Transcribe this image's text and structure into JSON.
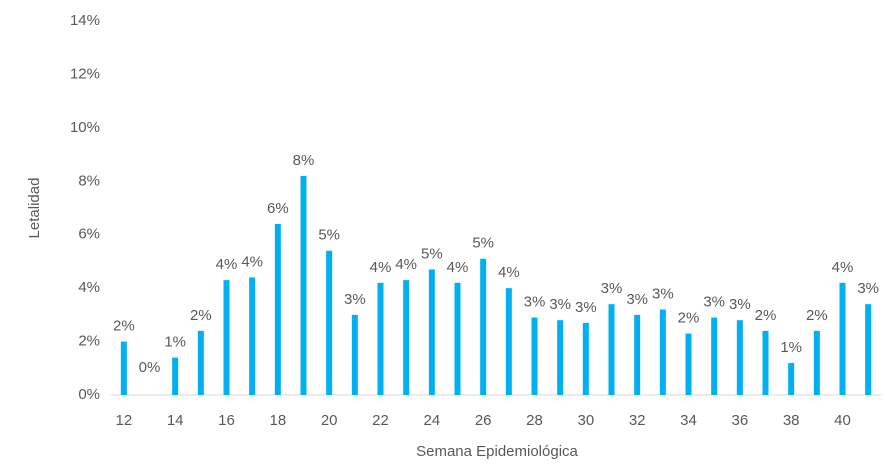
{
  "chart_data": {
    "type": "bar",
    "y_label": "Letalidad",
    "x_label": "Semana Epidemiológica",
    "categories": [
      12,
      null,
      14,
      null,
      16,
      null,
      18,
      null,
      20,
      null,
      22,
      null,
      24,
      null,
      26,
      null,
      28,
      null,
      30,
      null,
      32,
      null,
      34,
      null,
      36,
      null,
      38,
      null,
      40,
      null
    ],
    "values": [
      2.0,
      0,
      1.4,
      2.4,
      4.3,
      4.4,
      6.4,
      8.2,
      5.4,
      3.0,
      4.2,
      4.3,
      4.7,
      4.2,
      5.1,
      4.0,
      2.9,
      2.8,
      2.7,
      3.4,
      3.0,
      3.2,
      2.3,
      2.9,
      2.8,
      2.4,
      1.2,
      2.4,
      4.2,
      3.4
    ],
    "value_labels": [
      "2%",
      "0%",
      "1%",
      "2%",
      "4%",
      "4%",
      "6%",
      "8%",
      "5%",
      "3%",
      "4%",
      "4%",
      "5%",
      "4%",
      "5%",
      "4%",
      "3%",
      "3%",
      "3%",
      "3%",
      "3%",
      "3%",
      "2%",
      "3%",
      "3%",
      "2%",
      "1%",
      "2%",
      "4%",
      "3%"
    ],
    "color": "#00b0f0",
    "ylim": [
      0,
      14
    ],
    "yticks": [
      {
        "value": 0,
        "label": "0%"
      },
      {
        "value": 2,
        "label": "2%"
      },
      {
        "value": 4,
        "label": "4%"
      },
      {
        "value": 6,
        "label": "6%"
      },
      {
        "value": 8,
        "label": "8%"
      },
      {
        "value": 10,
        "label": "10%"
      },
      {
        "value": 12,
        "label": "12%"
      },
      {
        "value": 14,
        "label": "14%"
      }
    ],
    "grid": false
  }
}
